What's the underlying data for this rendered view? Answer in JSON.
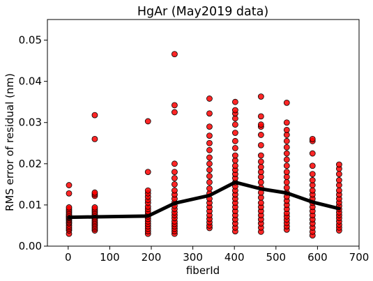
{
  "chart_data": {
    "type": "scatter",
    "title": "HgAr (May2019 data)",
    "xlabel": "fiberId",
    "ylabel": "RMS error of residual (nm)",
    "xlim": [
      -50,
      700
    ],
    "ylim": [
      0.0,
      0.055
    ],
    "xticks": [
      "0",
      "100",
      "200",
      "300",
      "400",
      "500",
      "600",
      "700"
    ],
    "yticks": [
      "0.00",
      "0.01",
      "0.02",
      "0.03",
      "0.04",
      "0.05"
    ],
    "xtick_values": [
      0,
      100,
      200,
      300,
      400,
      500,
      600,
      700
    ],
    "ytick_values": [
      0.0,
      0.01,
      0.02,
      0.03,
      0.04,
      0.05
    ],
    "grid": false,
    "marker_color": "#ff0000",
    "marker_edge_color": "#000000",
    "line_color": "#000000",
    "scatter_groups": [
      {
        "x": 2,
        "y": [
          0.003,
          0.0038,
          0.0042,
          0.0046,
          0.005,
          0.0055,
          0.0058,
          0.0062,
          0.0065,
          0.0068,
          0.007,
          0.0072,
          0.0075,
          0.0078,
          0.0082,
          0.0086,
          0.009,
          0.0094,
          0.0128,
          0.0148
        ]
      },
      {
        "x": 64,
        "y": [
          0.0038,
          0.0042,
          0.0046,
          0.005,
          0.0054,
          0.0058,
          0.0062,
          0.0066,
          0.007,
          0.0074,
          0.0078,
          0.0082,
          0.0086,
          0.009,
          0.0094,
          0.0122,
          0.0126,
          0.013,
          0.026,
          0.0318
        ]
      },
      {
        "x": 192,
        "y": [
          0.003,
          0.0036,
          0.0042,
          0.0048,
          0.0054,
          0.006,
          0.0066,
          0.0072,
          0.0078,
          0.0084,
          0.009,
          0.0096,
          0.0105,
          0.0112,
          0.012,
          0.0128,
          0.0135,
          0.018,
          0.0303
        ]
      },
      {
        "x": 256,
        "y": [
          0.003,
          0.0036,
          0.0042,
          0.0048,
          0.0054,
          0.006,
          0.0068,
          0.0075,
          0.0082,
          0.009,
          0.0098,
          0.0106,
          0.0115,
          0.0125,
          0.0135,
          0.015,
          0.0165,
          0.018,
          0.02,
          0.0325,
          0.0342,
          0.0466
        ]
      },
      {
        "x": 340,
        "y": [
          0.0044,
          0.005,
          0.0058,
          0.0066,
          0.0075,
          0.0085,
          0.0095,
          0.0105,
          0.0115,
          0.0128,
          0.014,
          0.0155,
          0.017,
          0.0185,
          0.02,
          0.0215,
          0.0233,
          0.025,
          0.0268,
          0.029,
          0.0322,
          0.0358
        ]
      },
      {
        "x": 402,
        "y": [
          0.0036,
          0.0045,
          0.0055,
          0.0065,
          0.0075,
          0.0085,
          0.0095,
          0.0105,
          0.0115,
          0.0125,
          0.0135,
          0.0145,
          0.0155,
          0.0165,
          0.0175,
          0.0185,
          0.0195,
          0.0208,
          0.022,
          0.0238,
          0.0255,
          0.0275,
          0.0295,
          0.031,
          0.0322,
          0.033,
          0.035
        ]
      },
      {
        "x": 464,
        "y": [
          0.0035,
          0.0045,
          0.0055,
          0.0065,
          0.0075,
          0.0085,
          0.0095,
          0.0105,
          0.0118,
          0.013,
          0.0142,
          0.0155,
          0.0168,
          0.018,
          0.0192,
          0.0205,
          0.022,
          0.0245,
          0.027,
          0.029,
          0.0295,
          0.0315,
          0.0363
        ]
      },
      {
        "x": 526,
        "y": [
          0.004,
          0.0048,
          0.0056,
          0.0064,
          0.0072,
          0.008,
          0.009,
          0.01,
          0.011,
          0.012,
          0.013,
          0.0142,
          0.0155,
          0.0168,
          0.018,
          0.0195,
          0.021,
          0.0225,
          0.024,
          0.0255,
          0.027,
          0.0282,
          0.03,
          0.0348
        ]
      },
      {
        "x": 588,
        "y": [
          0.0026,
          0.0035,
          0.0045,
          0.0055,
          0.0065,
          0.0075,
          0.0085,
          0.0095,
          0.0105,
          0.0115,
          0.0125,
          0.0135,
          0.0148,
          0.016,
          0.0175,
          0.0195,
          0.0225,
          0.0255,
          0.026
        ]
      },
      {
        "x": 652,
        "y": [
          0.0038,
          0.0045,
          0.0052,
          0.006,
          0.0068,
          0.0075,
          0.0082,
          0.009,
          0.0098,
          0.0106,
          0.0115,
          0.0125,
          0.0135,
          0.0148,
          0.016,
          0.0175,
          0.0188,
          0.0198
        ]
      }
    ],
    "line": {
      "x": [
        2,
        64,
        192,
        256,
        340,
        402,
        464,
        526,
        588,
        652
      ],
      "y": [
        0.007,
        0.0071,
        0.0073,
        0.0104,
        0.0123,
        0.0155,
        0.0139,
        0.0129,
        0.0107,
        0.0091
      ]
    }
  }
}
